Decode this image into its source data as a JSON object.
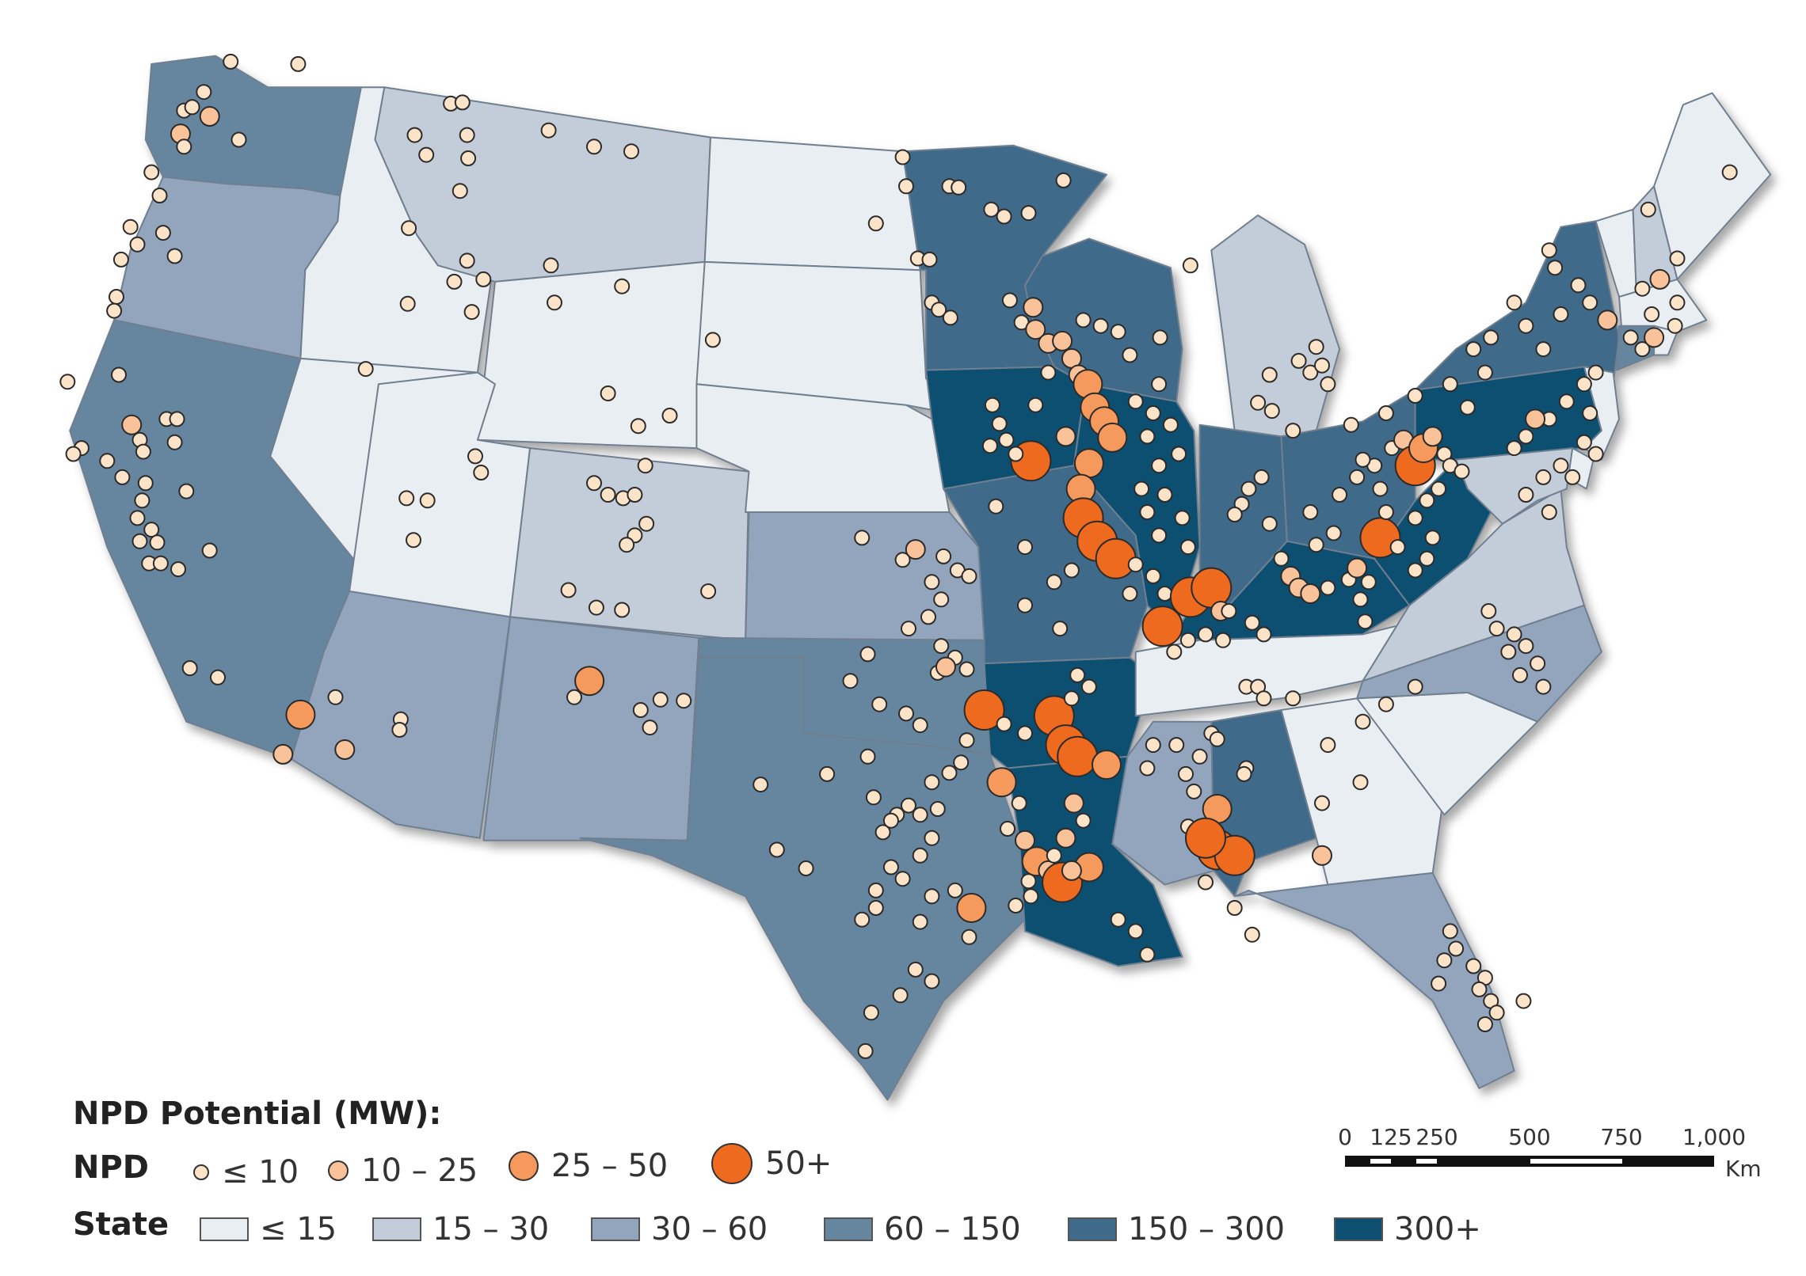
{
  "legend": {
    "title": "NPD Potential (MW):",
    "npd_label": "NPD",
    "state_label": "State",
    "npd_classes": [
      {
        "label": "≤ 10",
        "color": "#fde3c8"
      },
      {
        "label": "10 – 25",
        "color": "#f9c298"
      },
      {
        "label": "25 – 50",
        "color": "#f59a5c"
      },
      {
        "label": "50+",
        "color": "#ee6a1f"
      }
    ],
    "state_classes": [
      {
        "label": "≤ 15",
        "color": "#e9eef3"
      },
      {
        "label": "15 – 30",
        "color": "#c3ccd9"
      },
      {
        "label": "30 – 60",
        "color": "#92a5bd"
      },
      {
        "label": "60 – 150",
        "color": "#66859f"
      },
      {
        "label": "150 – 300",
        "color": "#3f6a8a"
      },
      {
        "label": "300+",
        "color": "#0d4f70"
      }
    ]
  },
  "scale": {
    "ticks": [
      "0",
      "125",
      "250",
      "500",
      "750",
      "1,000"
    ],
    "unit": "Km"
  },
  "map": {
    "border_color": "#6f7f8f",
    "state_class": {
      "WA": 3,
      "OR": 2,
      "CA": 3,
      "ID": 0,
      "NV": 0,
      "MT": 1,
      "WY": 0,
      "UT": 0,
      "CO": 1,
      "AZ": 2,
      "NM": 2,
      "ND": 0,
      "SD": 0,
      "NE": 0,
      "KS": 2,
      "OK": 3,
      "TX": 3,
      "MN": 4,
      "IA": 5,
      "MO": 4,
      "AR": 5,
      "LA": 5,
      "WI": 4,
      "IL": 5,
      "MI": 1,
      "IN": 4,
      "OH": 4,
      "KY": 5,
      "TN": 0,
      "MS": 2,
      "AL": 4,
      "GA": 0,
      "FL": 2,
      "SC": 0,
      "NC": 2,
      "VA": 1,
      "WV": 5,
      "PA": 5,
      "NY": 4,
      "VT": 0,
      "NH": 1,
      "ME": 0,
      "MA": 0,
      "CT": 3,
      "RI": 0,
      "NJ": 0,
      "DE": 0,
      "MD": 1
    }
  }
}
